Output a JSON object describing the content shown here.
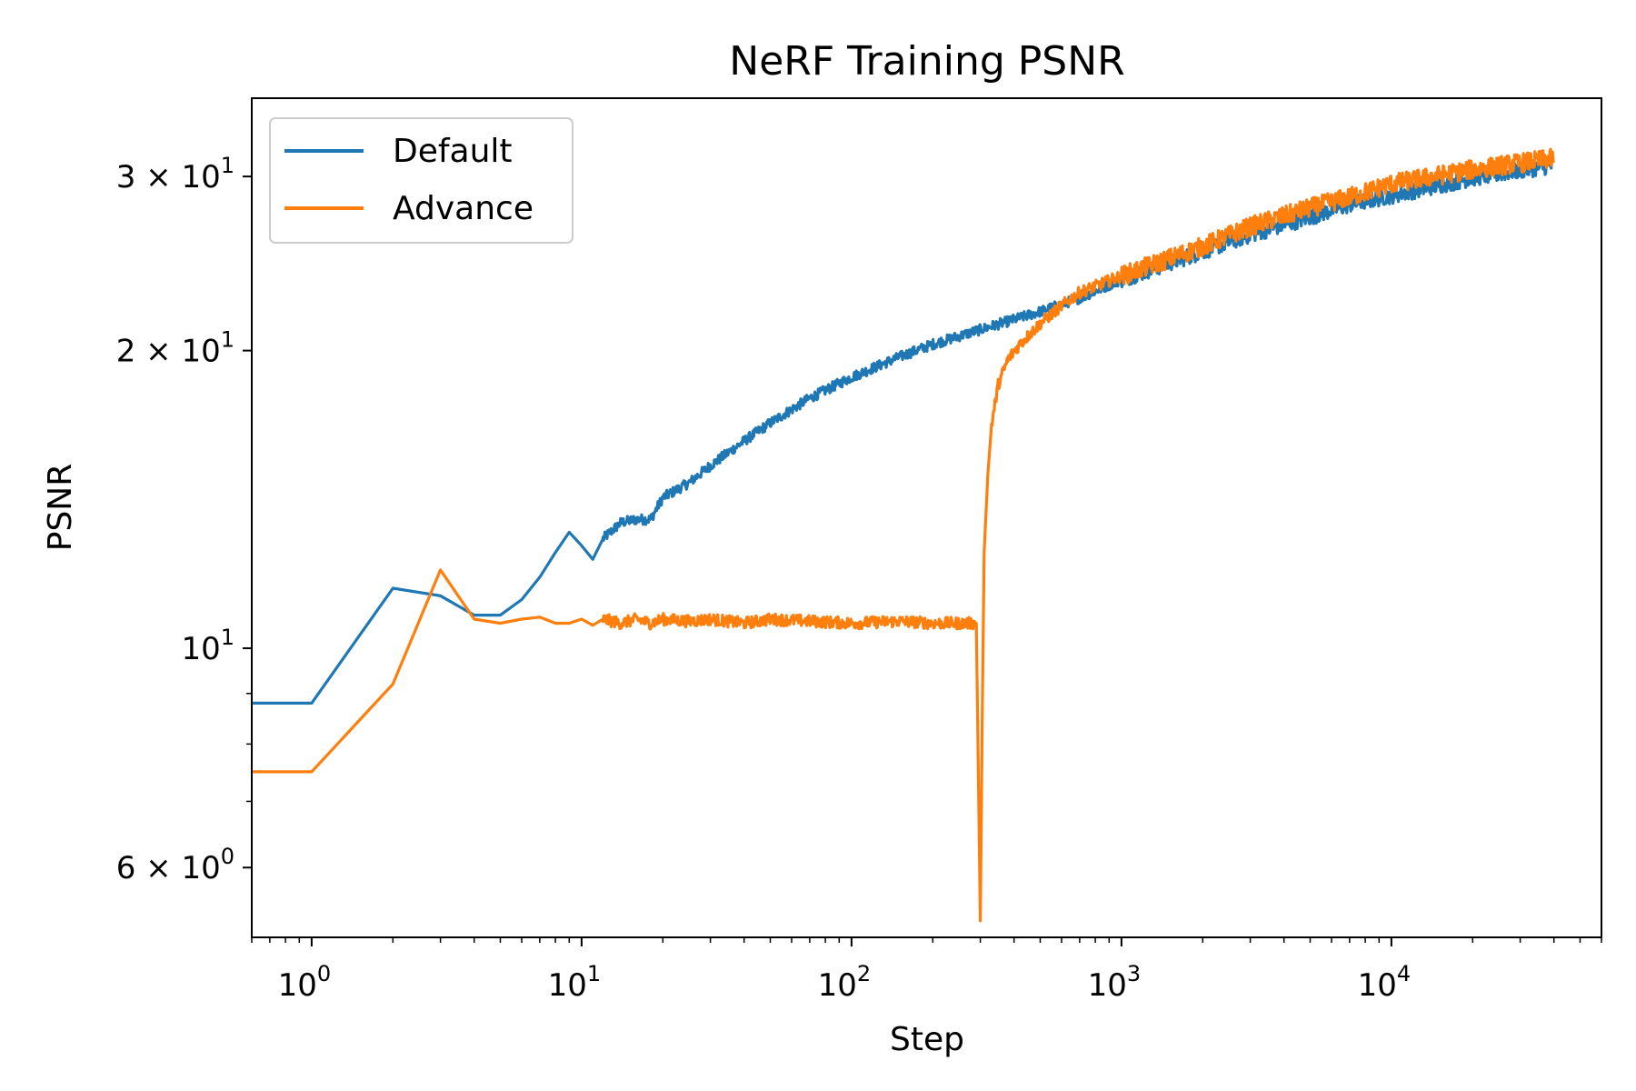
{
  "chart_data": {
    "type": "line",
    "title": "NeRF Training PSNR",
    "xlabel": "Step",
    "ylabel": "PSNR",
    "xscale": "log",
    "yscale": "log",
    "xlim": [
      0.6,
      60000
    ],
    "ylim": [
      5.1,
      36
    ],
    "grid": false,
    "legend_position": "top-left",
    "x_ticks": [
      {
        "value": 1,
        "base": "10",
        "exp": "0"
      },
      {
        "value": 10,
        "base": "10",
        "exp": "1"
      },
      {
        "value": 100,
        "base": "10",
        "exp": "2"
      },
      {
        "value": 1000,
        "base": "10",
        "exp": "3"
      },
      {
        "value": 10000,
        "base": "10",
        "exp": "4"
      }
    ],
    "y_ticks": [
      {
        "value": 6,
        "mant": "6 × ",
        "base": "10",
        "exp": "0"
      },
      {
        "value": 10,
        "mant": "",
        "base": "10",
        "exp": "1"
      },
      {
        "value": 20,
        "mant": "2 × ",
        "base": "10",
        "exp": "1"
      },
      {
        "value": 30,
        "mant": "3 × ",
        "base": "10",
        "exp": "1"
      }
    ],
    "series": [
      {
        "name": "Default",
        "color": "#1f77b4",
        "x": [
          0.6,
          1,
          2,
          3,
          4,
          5,
          6,
          7,
          8,
          9,
          10,
          11,
          12,
          14,
          16,
          18,
          20,
          25,
          30,
          40,
          50,
          70,
          100,
          150,
          200,
          300,
          500,
          700,
          1000,
          2000,
          3000,
          5000,
          7000,
          10000,
          20000,
          40000
        ],
        "y": [
          8.8,
          8.8,
          11.5,
          11.3,
          10.8,
          10.8,
          11.2,
          11.8,
          12.5,
          13.1,
          12.7,
          12.3,
          12.9,
          13.4,
          13.5,
          13.5,
          14.2,
          14.7,
          15.3,
          16.2,
          16.9,
          17.9,
          18.8,
          19.7,
          20.3,
          21.0,
          21.9,
          22.6,
          23.6,
          25.2,
          26.2,
          27.3,
          28.1,
          28.7,
          29.9,
          30.8
        ],
        "noise": 0.012
      },
      {
        "name": "Advance",
        "color": "#ff7f0e",
        "x": [
          0.6,
          1,
          2,
          3,
          4,
          5,
          6,
          7,
          8,
          9,
          10,
          11,
          12,
          14,
          16,
          18,
          20,
          25,
          30,
          40,
          50,
          70,
          100,
          150,
          200,
          290,
          300,
          305,
          310,
          320,
          330,
          350,
          380,
          420,
          500,
          600,
          700,
          1000,
          2000,
          3000,
          5000,
          7000,
          10000,
          20000,
          40000
        ],
        "y": [
          7.5,
          7.5,
          9.2,
          12.0,
          10.7,
          10.6,
          10.7,
          10.75,
          10.6,
          10.6,
          10.7,
          10.55,
          10.7,
          10.6,
          10.7,
          10.6,
          10.7,
          10.65,
          10.7,
          10.6,
          10.7,
          10.65,
          10.6,
          10.65,
          10.6,
          10.6,
          5.3,
          8.5,
          12.5,
          15.0,
          16.8,
          18.5,
          19.6,
          20.3,
          21.3,
          22.2,
          22.9,
          23.8,
          25.5,
          26.7,
          27.9,
          28.6,
          29.5,
          30.5,
          31.3
        ],
        "noise": 0.014
      }
    ]
  }
}
